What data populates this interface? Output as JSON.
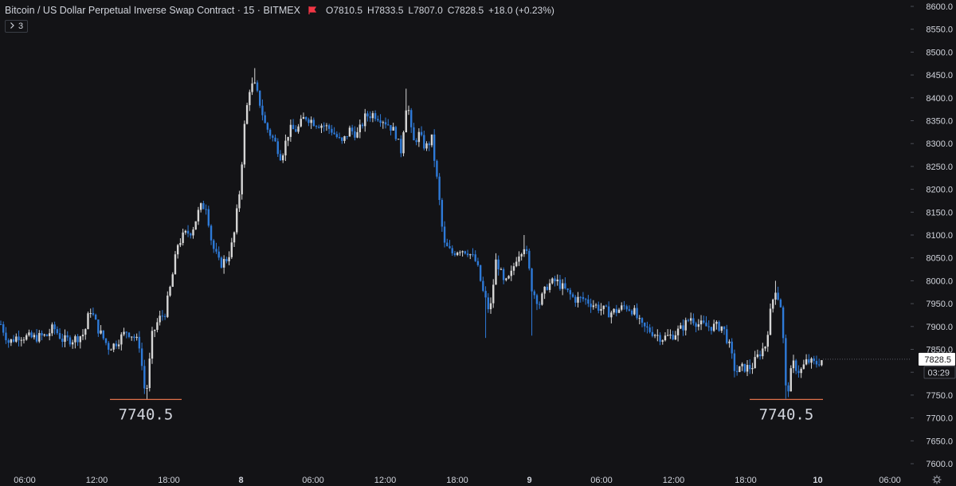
{
  "header": {
    "symbol_title": "Bitcoin / US Dollar Perpetual Inverse Swap Contract · 15 · BITMEX",
    "open_label": "O",
    "open": "7810.5",
    "high_label": "H",
    "high": "7833.5",
    "low_label": "L",
    "low": "7807.0",
    "close_label": "C",
    "close": "7828.5",
    "change": "+18.0 (+0.23%)",
    "flag_icon": "flag-icon",
    "flag_color": "#f23645"
  },
  "study_toggle": {
    "icon": "chevron-right-icon",
    "count": "3"
  },
  "price_axis": {
    "ticks": [
      "8600.0",
      "8550.0",
      "8500.0",
      "8450.0",
      "8400.0",
      "8350.0",
      "8300.0",
      "8250.0",
      "8200.0",
      "8150.0",
      "8100.0",
      "8050.0",
      "8000.0",
      "7950.0",
      "7900.0",
      "7850.0",
      "7800.0",
      "7750.0",
      "7700.0",
      "7650.0",
      "7600.0"
    ],
    "last_price_label": "7828.5",
    "countdown_label": "03:29"
  },
  "time_axis": {
    "ticks": [
      "06:00",
      "12:00",
      "18:00",
      "8",
      "06:00",
      "12:00",
      "18:00",
      "9",
      "06:00",
      "12:00",
      "18:00",
      "10",
      "06:00"
    ]
  },
  "annotations": [
    {
      "text": "7740.5",
      "price": 7740.5
    },
    {
      "text": "7740.5",
      "price": 7740.5
    }
  ],
  "settings_icon": "gear-icon",
  "colors": {
    "background": "#131316",
    "up_candle": "#d6d6d6",
    "down_candle": "#2e7ad8",
    "annotation_line": "#e0704a",
    "text": "#d1d4dc"
  },
  "chart_data": {
    "type": "candlestick",
    "interval": "15",
    "ylim": [
      7575,
      8620
    ],
    "time_labels": [
      "06:00",
      "12:00",
      "18:00",
      "8",
      "06:00",
      "12:00",
      "18:00",
      "9",
      "06:00",
      "12:00",
      "18:00",
      "10",
      "06:00"
    ],
    "price_path": [
      [
        0,
        7905
      ],
      [
        10,
        7865
      ],
      [
        22,
        7880
      ],
      [
        40,
        7875
      ],
      [
        58,
        7880
      ],
      [
        66,
        7898
      ],
      [
        78,
        7870
      ],
      [
        92,
        7872
      ],
      [
        105,
        7885
      ],
      [
        112,
        7940
      ],
      [
        122,
        7895
      ],
      [
        135,
        7855
      ],
      [
        142,
        7860
      ],
      [
        158,
        7890
      ],
      [
        166,
        7880
      ],
      [
        174,
        7860
      ],
      [
        182,
        7740.5
      ],
      [
        190,
        7880
      ],
      [
        198,
        7915
      ],
      [
        206,
        7930
      ],
      [
        214,
        7995
      ],
      [
        222,
        8080
      ],
      [
        230,
        8100
      ],
      [
        240,
        8110
      ],
      [
        250,
        8160
      ],
      [
        258,
        8165
      ],
      [
        265,
        8080
      ],
      [
        275,
        8035
      ],
      [
        285,
        8050
      ],
      [
        292,
        8090
      ],
      [
        300,
        8200
      ],
      [
        306,
        8340
      ],
      [
        312,
        8420
      ],
      [
        318,
        8430
      ],
      [
        325,
        8390
      ],
      [
        332,
        8340
      ],
      [
        345,
        8300
      ],
      [
        352,
        8270
      ],
      [
        362,
        8330
      ],
      [
        372,
        8330
      ],
      [
        382,
        8360
      ],
      [
        395,
        8345
      ],
      [
        405,
        8340
      ],
      [
        415,
        8330
      ],
      [
        428,
        8300
      ],
      [
        438,
        8330
      ],
      [
        448,
        8320
      ],
      [
        458,
        8360
      ],
      [
        468,
        8365
      ],
      [
        478,
        8355
      ],
      [
        488,
        8340
      ],
      [
        496,
        8320
      ],
      [
        502,
        8280
      ],
      [
        510,
        8400
      ],
      [
        517,
        8300
      ],
      [
        525,
        8320
      ],
      [
        533,
        8290
      ],
      [
        541,
        8310
      ],
      [
        549,
        8200
      ],
      [
        556,
        8080
      ],
      [
        566,
        8060
      ],
      [
        576,
        8070
      ],
      [
        586,
        8065
      ],
      [
        597,
        8040
      ],
      [
        606,
        7970
      ],
      [
        614,
        7930
      ],
      [
        622,
        8050
      ],
      [
        632,
        7990
      ],
      [
        640,
        8010
      ],
      [
        648,
        8055
      ],
      [
        658,
        8080
      ],
      [
        667,
        7980
      ],
      [
        676,
        7950
      ],
      [
        686,
        7990
      ],
      [
        697,
        8000
      ],
      [
        708,
        7980
      ],
      [
        720,
        7960
      ],
      [
        732,
        7960
      ],
      [
        742,
        7950
      ],
      [
        752,
        7940
      ],
      [
        764,
        7930
      ],
      [
        774,
        7935
      ],
      [
        784,
        7945
      ],
      [
        794,
        7935
      ],
      [
        804,
        7900
      ],
      [
        816,
        7890
      ],
      [
        830,
        7875
      ],
      [
        842,
        7880
      ],
      [
        854,
        7895
      ],
      [
        866,
        7920
      ],
      [
        876,
        7905
      ],
      [
        886,
        7900
      ],
      [
        896,
        7900
      ],
      [
        906,
        7900
      ],
      [
        914,
        7860
      ],
      [
        922,
        7800
      ],
      [
        932,
        7810
      ],
      [
        942,
        7810
      ],
      [
        952,
        7840
      ],
      [
        960,
        7860
      ],
      [
        966,
        7930
      ],
      [
        972,
        7985
      ],
      [
        980,
        7940
      ],
      [
        986,
        7742
      ],
      [
        994,
        7820
      ],
      [
        1003,
        7800
      ],
      [
        1012,
        7825
      ],
      [
        1022,
        7818
      ],
      [
        1032,
        7828.5
      ]
    ],
    "annotations": [
      {
        "label": "7740.5",
        "price": 7740.5
      },
      {
        "label": "7740.5",
        "price": 7740.5
      }
    ]
  }
}
